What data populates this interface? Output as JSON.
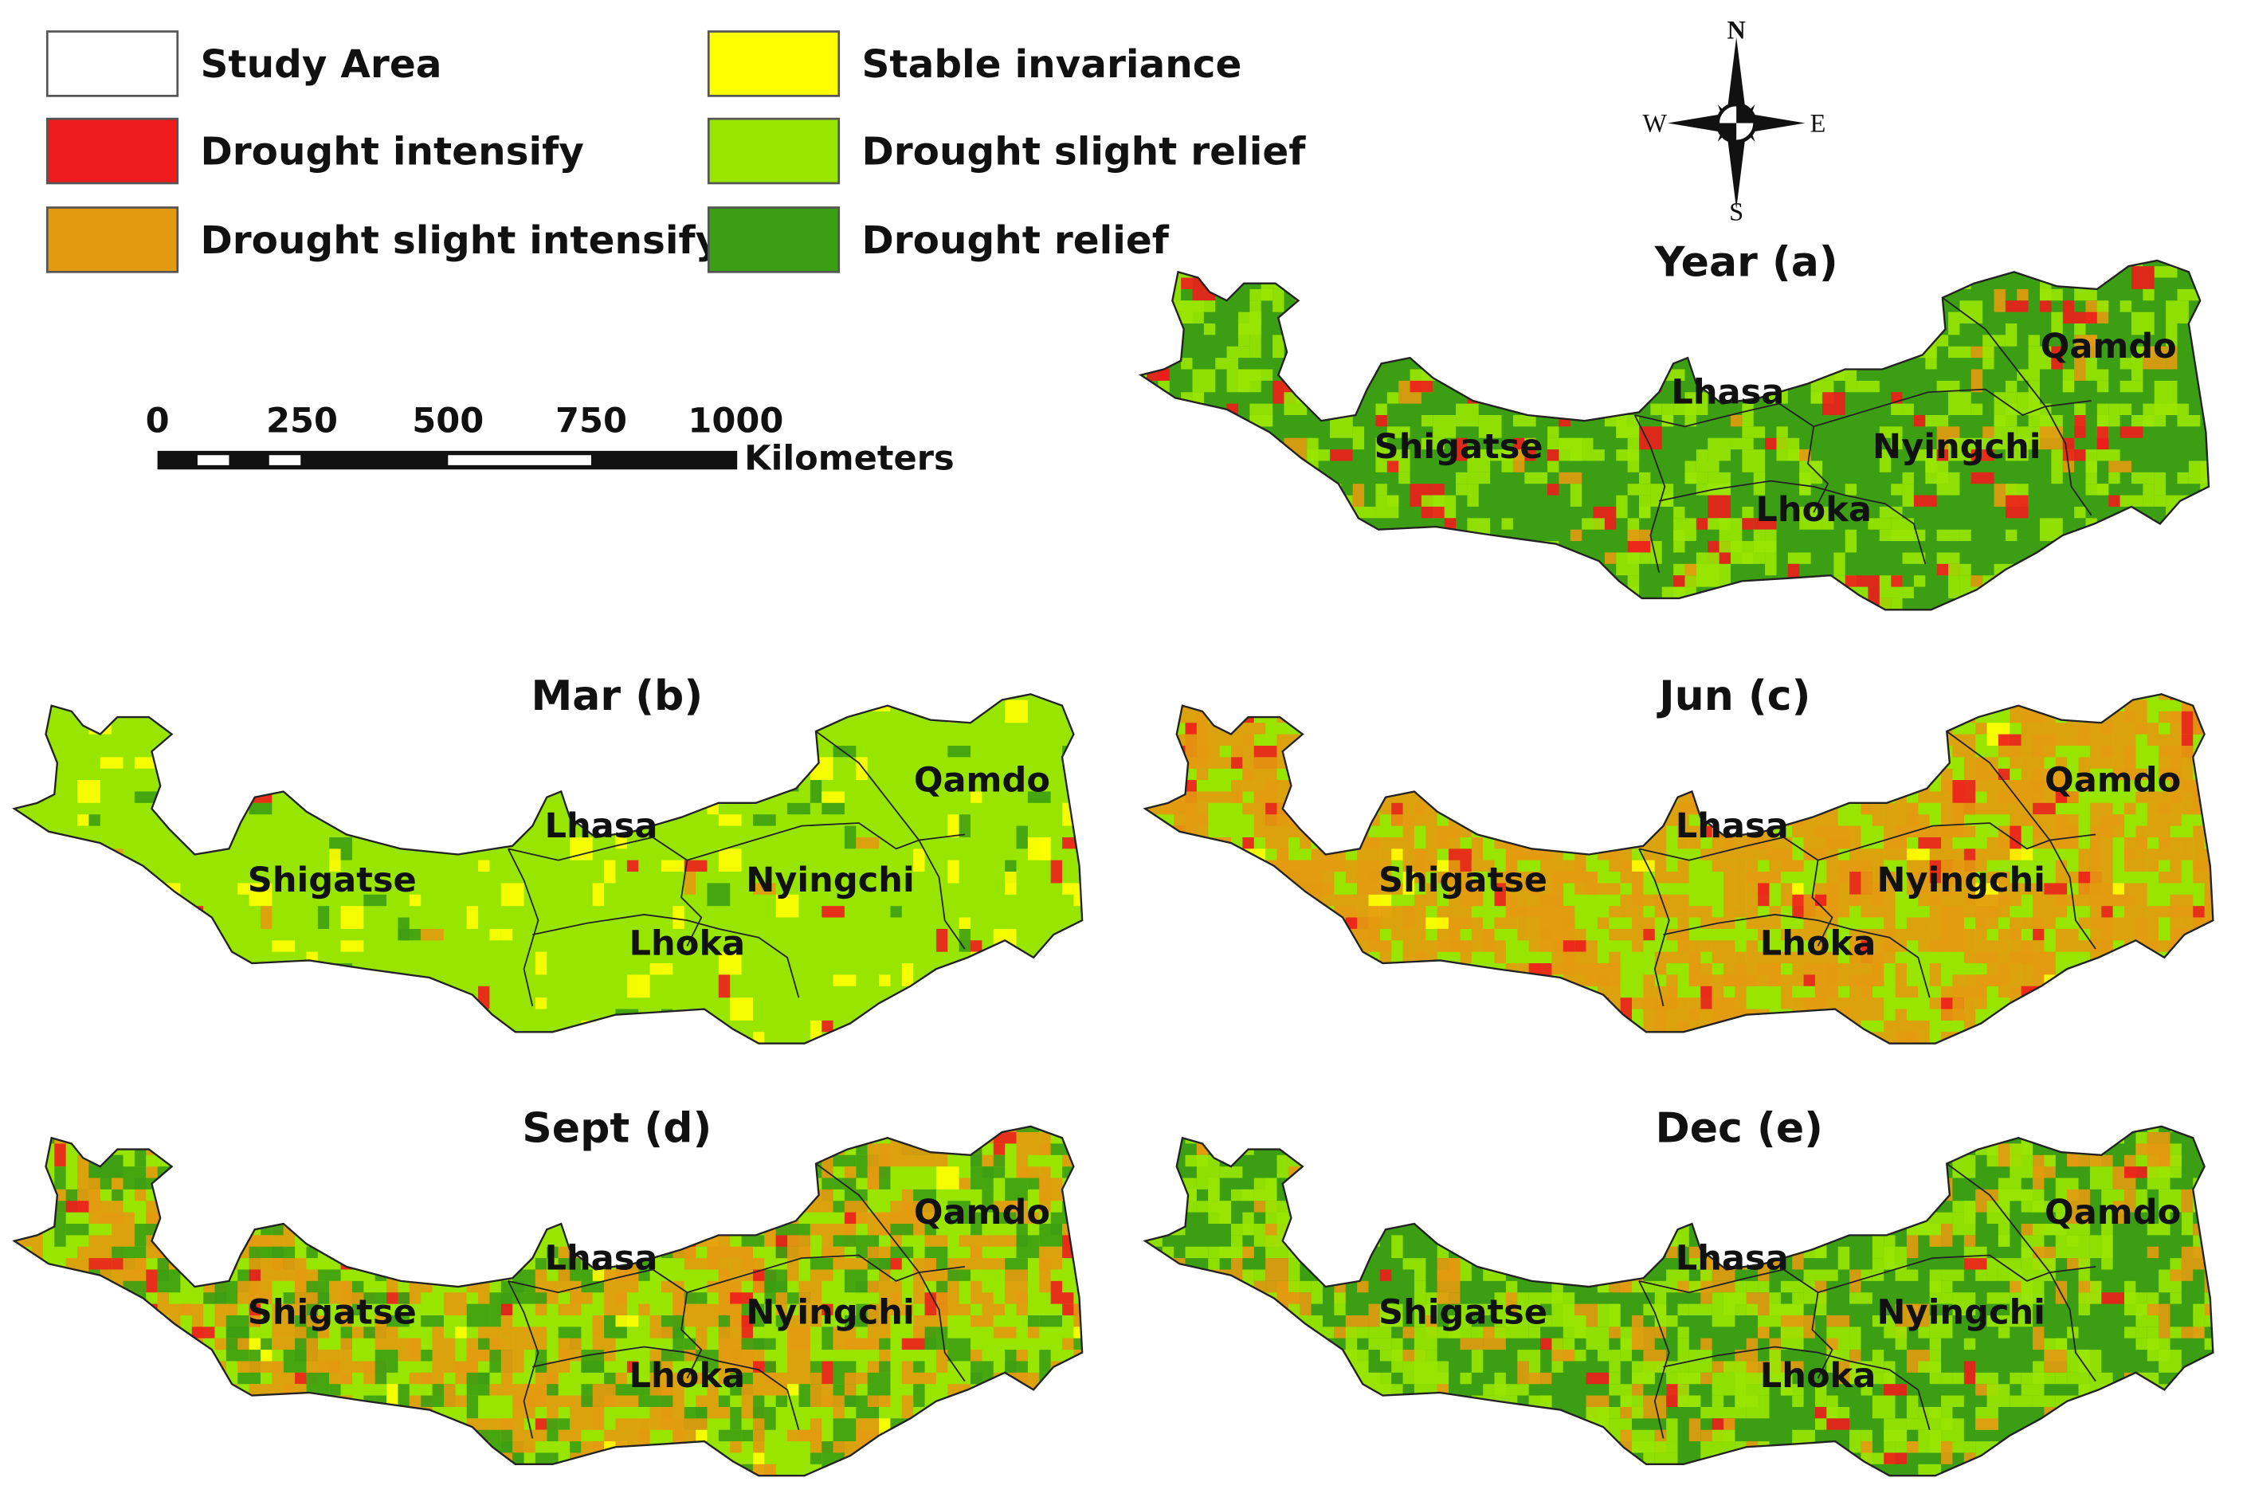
{
  "legend": {
    "items": [
      {
        "label": "Study Area",
        "color": "#ffffff"
      },
      {
        "label": "Drought intensify",
        "color": "#ee1c1c"
      },
      {
        "label": "Drought slight intensify",
        "color": "#e39a10"
      },
      {
        "label": "Stable invariance",
        "color": "#ffff00"
      },
      {
        "label": "Drought slight relief",
        "color": "#98e600"
      },
      {
        "label": "Drought relief",
        "color": "#3c9e12"
      }
    ]
  },
  "scale_bar": {
    "ticks": [
      "0",
      "250",
      "500",
      "750",
      "1000"
    ],
    "unit": "Kilometers"
  },
  "compass": {
    "n": "N",
    "s": "S",
    "e": "E",
    "w": "W"
  },
  "panels": [
    {
      "title": "Year (a)",
      "base": "dark",
      "mix": {
        "red": 0.035,
        "orange": 0.02,
        "light": 0.18,
        "yellow": 0.0,
        "dark": 0.765
      }
    },
    {
      "title": "Mar (b)",
      "base": "light",
      "mix": {
        "red": 0.006,
        "orange": 0.004,
        "light": 0.93,
        "yellow": 0.04,
        "dark": 0.02
      }
    },
    {
      "title": "Jun (c)",
      "base": "light",
      "mix": {
        "red": 0.03,
        "orange": 0.42,
        "light": 0.54,
        "yellow": 0.01,
        "dark": 0.0
      }
    },
    {
      "title": "Sept (d)",
      "base": "light",
      "mix": {
        "red": 0.02,
        "orange": 0.25,
        "light": 0.58,
        "yellow": 0.01,
        "dark": 0.14
      }
    },
    {
      "title": "Dec (e)",
      "base": "dark",
      "mix": {
        "red": 0.01,
        "orange": 0.08,
        "light": 0.27,
        "yellow": 0.0,
        "dark": 0.64
      }
    }
  ],
  "regions": [
    "Shigatse",
    "Lhasa",
    "Nyingchi",
    "Lhoka",
    "Qamdo"
  ]
}
